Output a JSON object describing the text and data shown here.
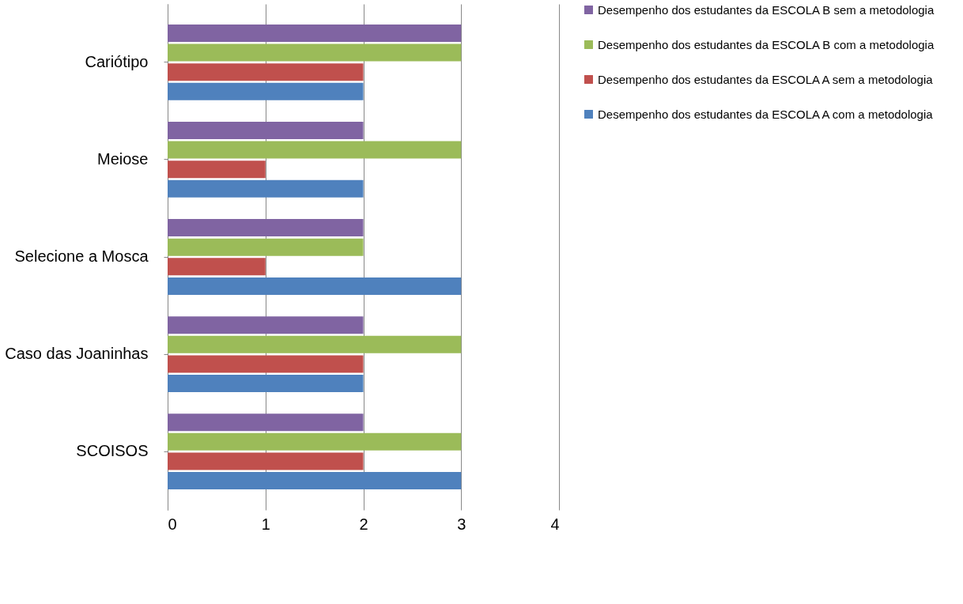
{
  "chart_data": {
    "type": "bar",
    "orientation": "horizontal",
    "categories": [
      "Cariótipo",
      "Meiose",
      "Selecione a Mosca",
      "Caso das Joaninhas",
      "SCOISOS"
    ],
    "series": [
      {
        "name": "Desempenho dos estudantes da ESCOLA A com a metodologia",
        "color": "#4f81bd",
        "values": [
          2,
          2,
          3,
          2,
          3
        ]
      },
      {
        "name": "Desempenho dos estudantes da ESCOLA A sem  a metodologia",
        "color": "#c0504d",
        "values": [
          2,
          1,
          1,
          2,
          2
        ]
      },
      {
        "name": "Desempenho dos estudantes da ESCOLA B com a metodologia",
        "color": "#9bbb59",
        "values": [
          3,
          3,
          2,
          3,
          3
        ]
      },
      {
        "name": "Desempenho dos estudantes da ESCOLA B sem a metodologia",
        "color": "#8064a2",
        "values": [
          3,
          2,
          2,
          2,
          2
        ]
      }
    ],
    "xlim": [
      0,
      4
    ],
    "xticks": [
      0,
      1,
      2,
      3,
      4
    ],
    "grid": "x",
    "legend": "right"
  }
}
